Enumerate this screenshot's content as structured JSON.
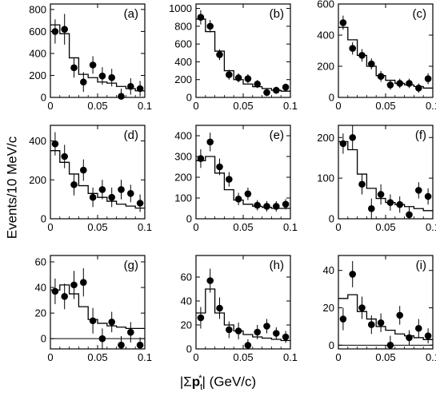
{
  "axis_labels": {
    "y": "Events/10 MeV/c",
    "x_pre": "|Σ",
    "x_bold": "p",
    "x_sub": "t",
    "x_sup": "*",
    "x_post": "| (GeV/c)"
  },
  "chart_data": [
    {
      "type": "scatter",
      "panel_label": "(a)",
      "xlim": [
        0,
        0.1
      ],
      "ylim": [
        0,
        850
      ],
      "xticks": [
        "0",
        "0.05",
        "0.1"
      ],
      "yticks": [
        0,
        200,
        400,
        600,
        800
      ],
      "x": [
        0.005,
        0.015,
        0.025,
        0.035,
        0.045,
        0.055,
        0.065,
        0.075,
        0.085,
        0.095
      ],
      "y": [
        600,
        620,
        270,
        140,
        295,
        195,
        180,
        10,
        100,
        80
      ],
      "yerr": [
        110,
        140,
        90,
        90,
        80,
        80,
        80,
        70,
        75,
        70
      ],
      "histogram": [
        660,
        580,
        360,
        210,
        180,
        140,
        130,
        100,
        80,
        60
      ]
    },
    {
      "type": "scatter",
      "panel_label": "(b)",
      "xlim": [
        0,
        0.1
      ],
      "ylim": [
        0,
        1050
      ],
      "xticks": [
        "0",
        "0.05",
        "0.1"
      ],
      "yticks": [
        0,
        200,
        400,
        600,
        800,
        1000
      ],
      "x": [
        0.005,
        0.015,
        0.025,
        0.035,
        0.045,
        0.055,
        0.065,
        0.075,
        0.085,
        0.095
      ],
      "y": [
        900,
        800,
        480,
        255,
        220,
        210,
        150,
        55,
        80,
        115
      ],
      "yerr": [
        80,
        70,
        60,
        55,
        50,
        50,
        45,
        40,
        40,
        40
      ],
      "histogram": [
        880,
        740,
        520,
        300,
        200,
        150,
        120,
        100,
        80,
        70
      ]
    },
    {
      "type": "scatter",
      "panel_label": "(c)",
      "xlim": [
        0,
        0.1
      ],
      "ylim": [
        0,
        600
      ],
      "xticks": [
        "0",
        "0.05",
        "0.1"
      ],
      "yticks": [
        0,
        200,
        400,
        600
      ],
      "x": [
        0.005,
        0.015,
        0.025,
        0.035,
        0.045,
        0.055,
        0.065,
        0.075,
        0.085,
        0.095
      ],
      "y": [
        480,
        315,
        270,
        215,
        135,
        80,
        90,
        90,
        60,
        120
      ],
      "yerr": [
        45,
        40,
        40,
        35,
        35,
        30,
        30,
        30,
        30,
        35
      ],
      "histogram": [
        450,
        370,
        270,
        200,
        140,
        110,
        90,
        80,
        70,
        60
      ]
    },
    {
      "type": "scatter",
      "panel_label": "(d)",
      "xlim": [
        0,
        0.1
      ],
      "ylim": [
        0,
        480
      ],
      "xticks": [
        "0",
        "0.05",
        "0.1"
      ],
      "yticks": [
        0,
        200,
        400
      ],
      "x": [
        0.005,
        0.015,
        0.025,
        0.035,
        0.045,
        0.055,
        0.065,
        0.075,
        0.085,
        0.095
      ],
      "y": [
        385,
        320,
        175,
        250,
        110,
        150,
        110,
        150,
        130,
        80
      ],
      "yerr": [
        60,
        60,
        55,
        55,
        50,
        50,
        50,
        50,
        45,
        45
      ],
      "histogram": [
        350,
        290,
        230,
        170,
        130,
        110,
        90,
        75,
        65,
        55
      ]
    },
    {
      "type": "scatter",
      "panel_label": "(e)",
      "xlim": [
        0,
        0.1
      ],
      "ylim": [
        0,
        450
      ],
      "xticks": [
        "0",
        "0.05",
        "0.1"
      ],
      "yticks": [
        0,
        100,
        200,
        300,
        400
      ],
      "x": [
        0.005,
        0.015,
        0.025,
        0.035,
        0.045,
        0.055,
        0.065,
        0.075,
        0.085,
        0.095
      ],
      "y": [
        290,
        370,
        250,
        190,
        95,
        120,
        65,
        60,
        60,
        70
      ],
      "yerr": [
        45,
        45,
        40,
        35,
        30,
        30,
        25,
        25,
        25,
        25
      ],
      "histogram": [
        280,
        300,
        220,
        140,
        90,
        70,
        60,
        55,
        50,
        50
      ]
    },
    {
      "type": "scatter",
      "panel_label": "(f)",
      "xlim": [
        0,
        0.1
      ],
      "ylim": [
        0,
        230
      ],
      "xticks": [
        "0",
        "0.05",
        "0.1"
      ],
      "yticks": [
        0,
        100,
        200
      ],
      "x": [
        0.005,
        0.015,
        0.025,
        0.035,
        0.045,
        0.055,
        0.065,
        0.075,
        0.085,
        0.095
      ],
      "y": [
        185,
        200,
        85,
        25,
        60,
        40,
        35,
        10,
        70,
        55
      ],
      "yerr": [
        25,
        30,
        25,
        25,
        25,
        20,
        20,
        20,
        20,
        20
      ],
      "histogram": [
        190,
        170,
        110,
        75,
        50,
        40,
        35,
        30,
        25,
        20
      ]
    },
    {
      "type": "scatter",
      "panel_label": "(g)",
      "xlim": [
        0,
        0.1
      ],
      "ylim": [
        -8,
        65
      ],
      "xticks": [
        "0",
        "0.05",
        "0.1"
      ],
      "yticks": [
        0,
        20,
        40,
        60
      ],
      "x": [
        0.005,
        0.015,
        0.025,
        0.035,
        0.045,
        0.055,
        0.065,
        0.075,
        0.085,
        0.095
      ],
      "y": [
        37,
        33,
        42,
        44,
        14,
        0,
        13,
        -5,
        5,
        -5
      ],
      "yerr": [
        10,
        10,
        11,
        11,
        10,
        8,
        8,
        7,
        8,
        6
      ],
      "histogram": [
        38,
        42,
        35,
        25,
        15,
        12,
        10,
        9,
        8,
        8
      ]
    },
    {
      "type": "scatter",
      "panel_label": "(h)",
      "xlim": [
        0,
        0.1
      ],
      "ylim": [
        0,
        78
      ],
      "xticks": [
        "0",
        "0.05",
        "0.1"
      ],
      "yticks": [
        0,
        20,
        40,
        60
      ],
      "x": [
        0.005,
        0.015,
        0.025,
        0.035,
        0.045,
        0.055,
        0.065,
        0.075,
        0.085,
        0.095
      ],
      "y": [
        26,
        57,
        34,
        16,
        15,
        3,
        14,
        19,
        13,
        10
      ],
      "yerr": [
        9,
        10,
        9,
        7,
        7,
        5,
        6,
        6,
        5,
        5
      ],
      "histogram": [
        30,
        50,
        30,
        20,
        15,
        12,
        10,
        9,
        8,
        7
      ]
    },
    {
      "type": "scatter",
      "panel_label": "(i)",
      "xlim": [
        0,
        0.1
      ],
      "ylim": [
        -2,
        48
      ],
      "xticks": [
        "0",
        "0.05",
        "0.1"
      ],
      "yticks": [
        0,
        20,
        40
      ],
      "x": [
        0.005,
        0.015,
        0.025,
        0.035,
        0.045,
        0.055,
        0.065,
        0.075,
        0.085,
        0.095
      ],
      "y": [
        14,
        38,
        20,
        11,
        12,
        0,
        16,
        4,
        9,
        5
      ],
      "yerr": [
        6,
        7,
        6,
        5,
        5,
        5,
        5,
        4,
        5,
        4
      ],
      "histogram": [
        25,
        27,
        18,
        14,
        10,
        8,
        6,
        5,
        4,
        3
      ]
    }
  ]
}
